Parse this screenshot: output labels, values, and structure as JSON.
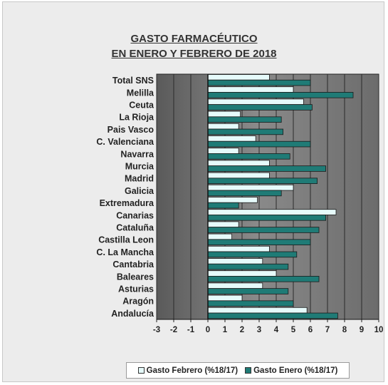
{
  "chart_data": {
    "type": "bar",
    "orientation": "horizontal",
    "title_line1": "GASTO FARMACÉUTICO",
    "title_line2": "EN ENERO Y FEBRERO DE 2018",
    "categories": [
      "Total SNS",
      "Melilla",
      "Ceuta",
      "La Rioja",
      "Pais Vasco",
      "C. Valenciana",
      "Navarra",
      "Murcia",
      "Madrid",
      "Galicia",
      "Extremadura",
      "Canarias",
      "Cataluña",
      "Castilla Leon",
      "C. La Mancha",
      "Cantabria",
      "Baleares",
      "Asturias",
      "Aragón",
      "Andalucía"
    ],
    "series": [
      {
        "name": "Gasto Febrero  (%18/17)",
        "color": "#e6fafa",
        "values": [
          3.6,
          5.0,
          5.6,
          1.9,
          1.8,
          2.8,
          1.8,
          3.6,
          3.6,
          5.0,
          2.9,
          7.5,
          1.8,
          1.4,
          3.6,
          3.2,
          4.0,
          3.2,
          2.0,
          5.8
        ]
      },
      {
        "name": "Gasto Enero (%18/17)",
        "color": "#1f7b76",
        "values": [
          6.0,
          8.5,
          6.1,
          4.3,
          4.4,
          6.0,
          4.8,
          6.9,
          6.4,
          4.3,
          1.8,
          6.9,
          6.5,
          6.0,
          5.2,
          4.7,
          6.5,
          4.7,
          5.0,
          7.6
        ]
      }
    ],
    "x_ticks": [
      "-3",
      "-2",
      "-1",
      "0",
      "1",
      "2",
      "3",
      "4",
      "5",
      "6",
      "7",
      "8",
      "9",
      "10"
    ],
    "xlim": [
      -3,
      10
    ],
    "grid": "vertical gridlines",
    "legend_position": "bottom",
    "colors": {
      "plot_background": "#5f5f5f",
      "febrero": "#e6fafa",
      "enero": "#1f7b76",
      "grid": "#2a2a2a"
    }
  }
}
